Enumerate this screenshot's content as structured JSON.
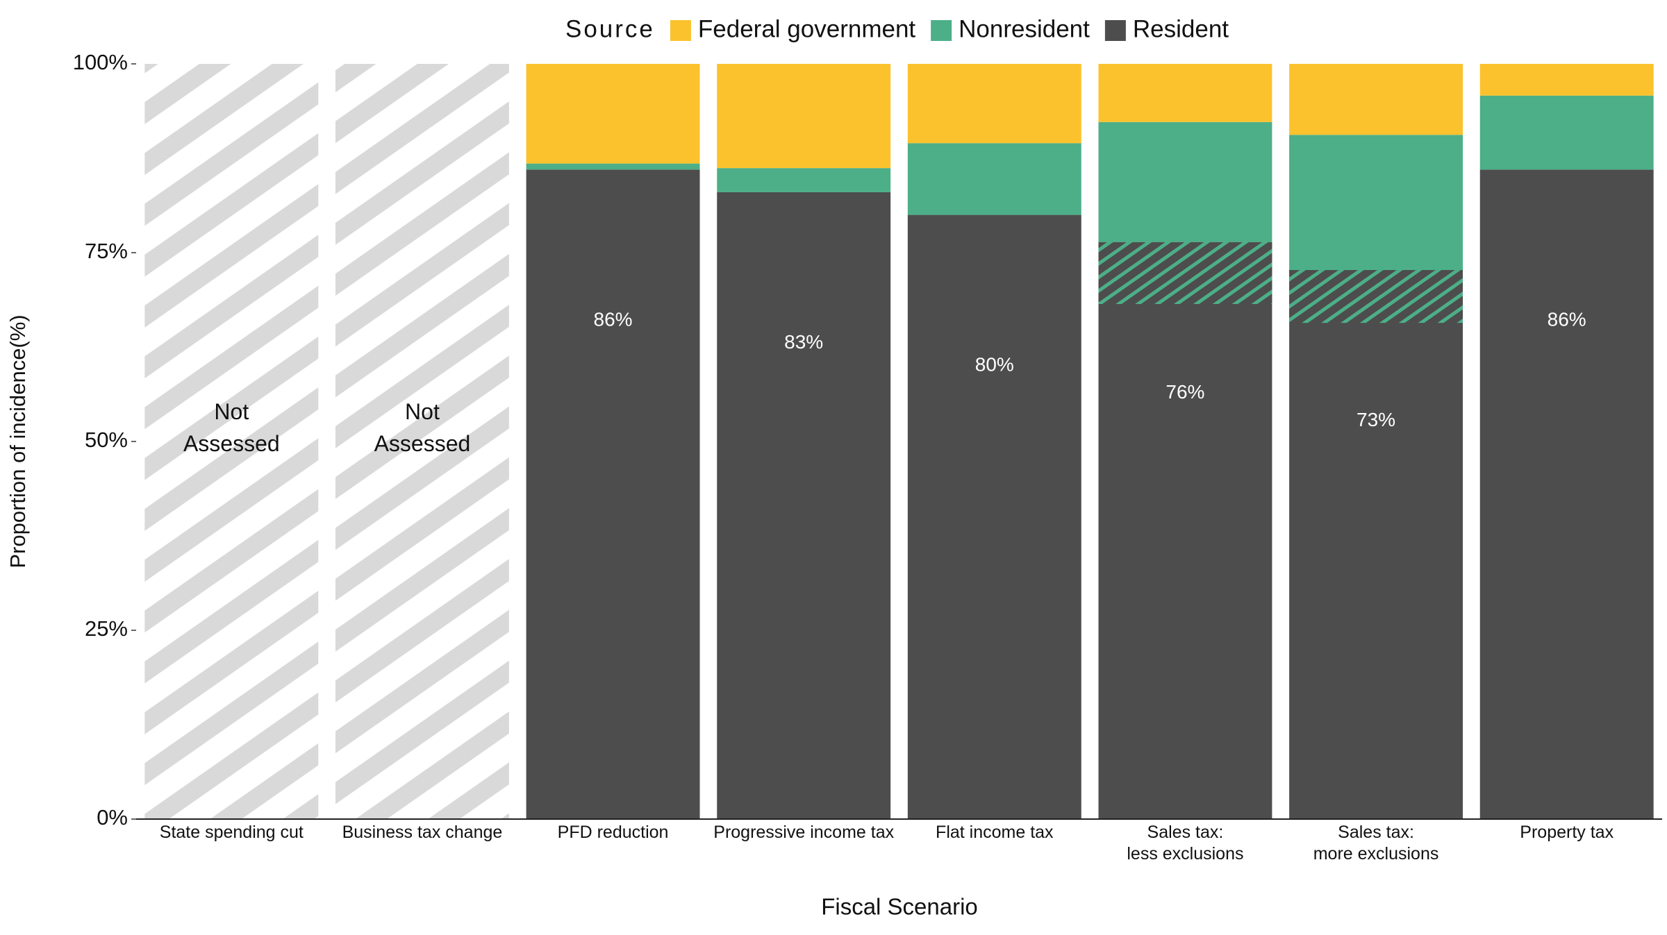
{
  "chart_data": {
    "type": "stacked_bar",
    "legend_title": "Source",
    "x_label": "Fiscal Scenario",
    "y_label": "Proportion of incidence(%)",
    "categories": [
      "State spending cut",
      "Business tax change",
      "PFD reduction",
      "Progressive income tax",
      "Flat income tax",
      "Sales tax:\nless exclusions",
      "Sales tax:\nmore exclusions",
      "Property tax"
    ],
    "bar_annotations": [
      "Not Assessed",
      "Not Assessed",
      null,
      null,
      null,
      null,
      null,
      null
    ],
    "series": [
      {
        "name": "Federal government",
        "color": "#fbc22d",
        "values": [
          null,
          null,
          13.2,
          13.8,
          10.5,
          7.7,
          9.4,
          4.2
        ]
      },
      {
        "name": "Nonresident",
        "color": "#4caf88",
        "values": [
          null,
          null,
          0.8,
          3.2,
          9.5,
          15.9,
          17.9,
          9.8
        ]
      },
      {
        "name": "Resident",
        "color": "#4d4d4d",
        "values": [
          null,
          null,
          86,
          83,
          80,
          76.4,
          72.7,
          86
        ],
        "value_labels": [
          null,
          null,
          "86%",
          "83%",
          "80%",
          "76%",
          "73%",
          "86%"
        ]
      }
    ],
    "hatched_overlap": {
      "color": "#4caf88",
      "values": [
        null,
        null,
        null,
        null,
        null,
        8.2,
        7.0,
        null
      ]
    },
    "ylim": [
      0,
      100
    ],
    "yticks": [
      {
        "value": 0,
        "label": "0%"
      },
      {
        "value": 25,
        "label": "25%"
      },
      {
        "value": 50,
        "label": "50%"
      },
      {
        "value": 75,
        "label": "75%"
      },
      {
        "value": 100,
        "label": "100%"
      }
    ]
  }
}
